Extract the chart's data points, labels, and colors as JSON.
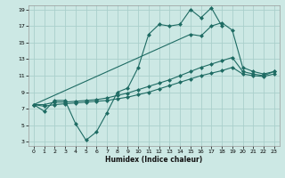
{
  "xlabel": "Humidex (Indice chaleur)",
  "background_color": "#cce8e4",
  "grid_color": "#aacfcb",
  "line_color": "#1e6b63",
  "xlim": [
    -0.5,
    23.5
  ],
  "ylim": [
    2.5,
    19.5
  ],
  "xticks": [
    0,
    1,
    2,
    3,
    4,
    5,
    6,
    7,
    8,
    9,
    10,
    11,
    12,
    13,
    14,
    15,
    16,
    17,
    18,
    19,
    20,
    21,
    22,
    23
  ],
  "yticks": [
    3,
    5,
    7,
    9,
    11,
    13,
    15,
    17,
    19
  ],
  "line1_x": [
    0,
    1,
    2,
    3,
    4,
    5,
    6,
    7,
    8,
    9,
    10,
    11,
    12,
    13,
    14,
    15,
    16,
    17,
    18
  ],
  "line1_y": [
    7.5,
    6.7,
    8.0,
    8.0,
    5.2,
    3.2,
    4.2,
    6.5,
    9.0,
    9.5,
    12.0,
    16.0,
    17.2,
    17.0,
    17.2,
    19.0,
    18.0,
    19.2,
    17.0
  ],
  "line2_x": [
    0,
    15,
    16,
    17,
    18,
    19,
    20,
    21,
    22,
    23
  ],
  "line2_y": [
    7.5,
    16.0,
    15.8,
    17.0,
    17.4,
    16.5,
    12.0,
    11.5,
    11.2,
    11.5
  ],
  "line3_x": [
    0,
    1,
    2,
    3,
    4,
    5,
    6,
    7,
    8,
    9,
    10,
    11,
    12,
    13,
    14,
    15,
    16,
    17,
    18,
    19,
    20,
    21,
    22,
    23
  ],
  "line3_y": [
    7.5,
    7.5,
    7.8,
    7.8,
    7.9,
    8.0,
    8.1,
    8.3,
    8.6,
    8.9,
    9.3,
    9.7,
    10.1,
    10.5,
    11.0,
    11.5,
    12.0,
    12.4,
    12.8,
    13.2,
    11.5,
    11.2,
    11.0,
    11.5
  ],
  "line4_x": [
    0,
    1,
    2,
    3,
    4,
    5,
    6,
    7,
    8,
    9,
    10,
    11,
    12,
    13,
    14,
    15,
    16,
    17,
    18,
    19,
    20,
    21,
    22,
    23
  ],
  "line4_y": [
    7.5,
    7.3,
    7.5,
    7.6,
    7.7,
    7.8,
    7.9,
    8.0,
    8.2,
    8.4,
    8.7,
    9.0,
    9.4,
    9.8,
    10.2,
    10.6,
    11.0,
    11.3,
    11.6,
    12.0,
    11.2,
    11.0,
    10.9,
    11.2
  ]
}
